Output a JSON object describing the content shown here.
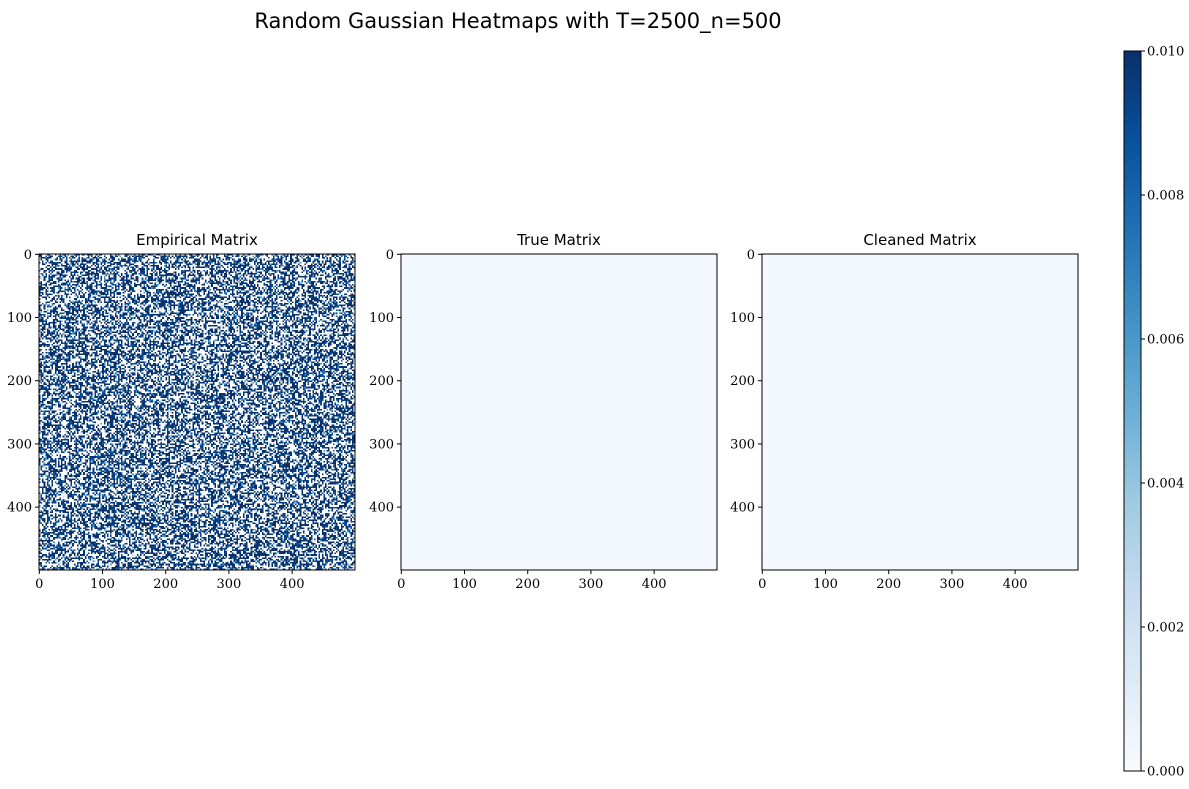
{
  "figure": {
    "title": "Random Gaussian Heatmaps with T=2500_n=500"
  },
  "chart_data": [
    {
      "type": "heatmap",
      "title": "Empirical Matrix",
      "n": 500,
      "x_ticks": [
        "0",
        "100",
        "200",
        "300",
        "400"
      ],
      "y_ticks": [
        "0",
        "100",
        "200",
        "300",
        "400"
      ],
      "xlim": [
        0,
        500
      ],
      "ylim": [
        0,
        500
      ],
      "y_inverted": true,
      "value_description": "dense random noise; about half the cells at or above vmax, the rest near 0",
      "saturated_fraction": 0.5
    },
    {
      "type": "heatmap",
      "title": "True Matrix",
      "n": 500,
      "x_ticks": [
        "0",
        "100",
        "200",
        "300",
        "400"
      ],
      "y_ticks": [
        "0",
        "100",
        "200",
        "300",
        "400"
      ],
      "xlim": [
        0,
        500
      ],
      "ylim": [
        0,
        500
      ],
      "y_inverted": true,
      "uniform_value": 0.0002
    },
    {
      "type": "heatmap",
      "title": "Cleaned Matrix",
      "n": 500,
      "x_ticks": [
        "0",
        "100",
        "200",
        "300",
        "400"
      ],
      "y_ticks": [
        "0",
        "100",
        "200",
        "300",
        "400"
      ],
      "xlim": [
        0,
        500
      ],
      "ylim": [
        0,
        500
      ],
      "y_inverted": true,
      "uniform_value": 0.00025
    }
  ],
  "colorbar": {
    "cmap": "Blues",
    "vmin": 0.0,
    "vmax": 0.01,
    "ticks": [
      0.0,
      0.002,
      0.004,
      0.006,
      0.008,
      0.01
    ],
    "tick_labels": [
      "0.000",
      "0.002",
      "0.004",
      "0.006",
      "0.008",
      "0.010"
    ]
  },
  "colors": {
    "cmap_low": "#f7fbff",
    "cmap_high": "#08306b",
    "axis": "#000000"
  }
}
